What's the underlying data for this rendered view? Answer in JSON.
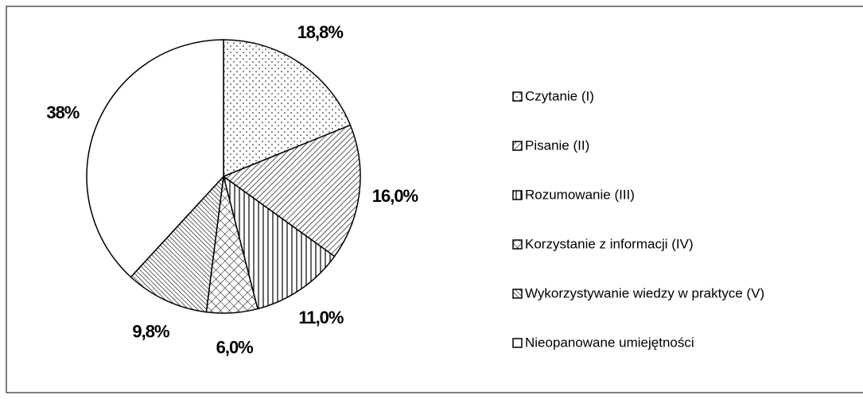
{
  "chart_data": {
    "type": "pie",
    "categories": [
      "Czytanie (I)",
      "Pisanie (II)",
      "Rozumowanie (III)",
      "Korzystanie z informacji (IV)",
      "Wykorzystywanie wiedzy w praktyce (V)",
      "Nieopanowane umiejętności"
    ],
    "values": [
      18.8,
      16.0,
      11.0,
      6.0,
      9.8,
      38
    ],
    "value_labels": [
      "18,8%",
      "16,0%",
      "11,0%",
      "6,0%",
      "9,8%",
      "38%"
    ],
    "legend": "right"
  }
}
